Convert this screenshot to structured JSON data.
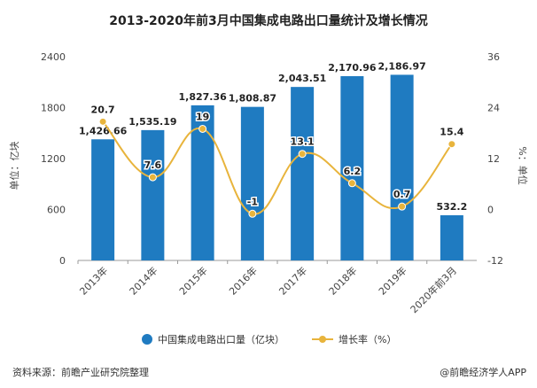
{
  "chart_data": {
    "type": "bar",
    "title": "2013-2020年前3月中国集成电路出口量统计及增长情况",
    "categories": [
      "2013年",
      "2014年",
      "2015年",
      "2016年",
      "2017年",
      "2018年",
      "2019年",
      "2020年前3月"
    ],
    "series": [
      {
        "name": "中国集成电路出口量（亿块）",
        "type": "bar",
        "axis": "left",
        "color": "#1f7bc1",
        "values": [
          1426.66,
          1535.19,
          1827.36,
          1808.87,
          2043.51,
          2170.96,
          2186.97,
          532.2
        ],
        "labels": [
          "1,426.66",
          "1,535.19",
          "1,827.36",
          "1,808.87",
          "2,043.51",
          "2,170.96",
          "2,186.97",
          "532.2"
        ]
      },
      {
        "name": "增长率（%）",
        "type": "line",
        "axis": "right",
        "color": "#e8b43c",
        "values": [
          20.7,
          7.6,
          19,
          -1,
          13.1,
          6.2,
          0.7,
          15.4
        ],
        "labels": [
          "20.7",
          "7.6",
          "19",
          "-1",
          "13.1",
          "6.2",
          "0.7",
          "15.4"
        ]
      }
    ],
    "y_left": {
      "label": "单位：亿块",
      "min": 0,
      "max": 2400,
      "ticks": [
        "0",
        "600",
        "1200",
        "1800",
        "2400"
      ]
    },
    "y_right": {
      "label": "%：单位",
      "min": -12,
      "max": 36,
      "ticks": [
        "-12",
        "0",
        "12",
        "24",
        "36"
      ]
    },
    "grid": false,
    "legend_position": "bottom"
  },
  "footer": {
    "source": "资料来源：前瞻产业研究院整理",
    "brand": "@前瞻经济学人APP"
  }
}
